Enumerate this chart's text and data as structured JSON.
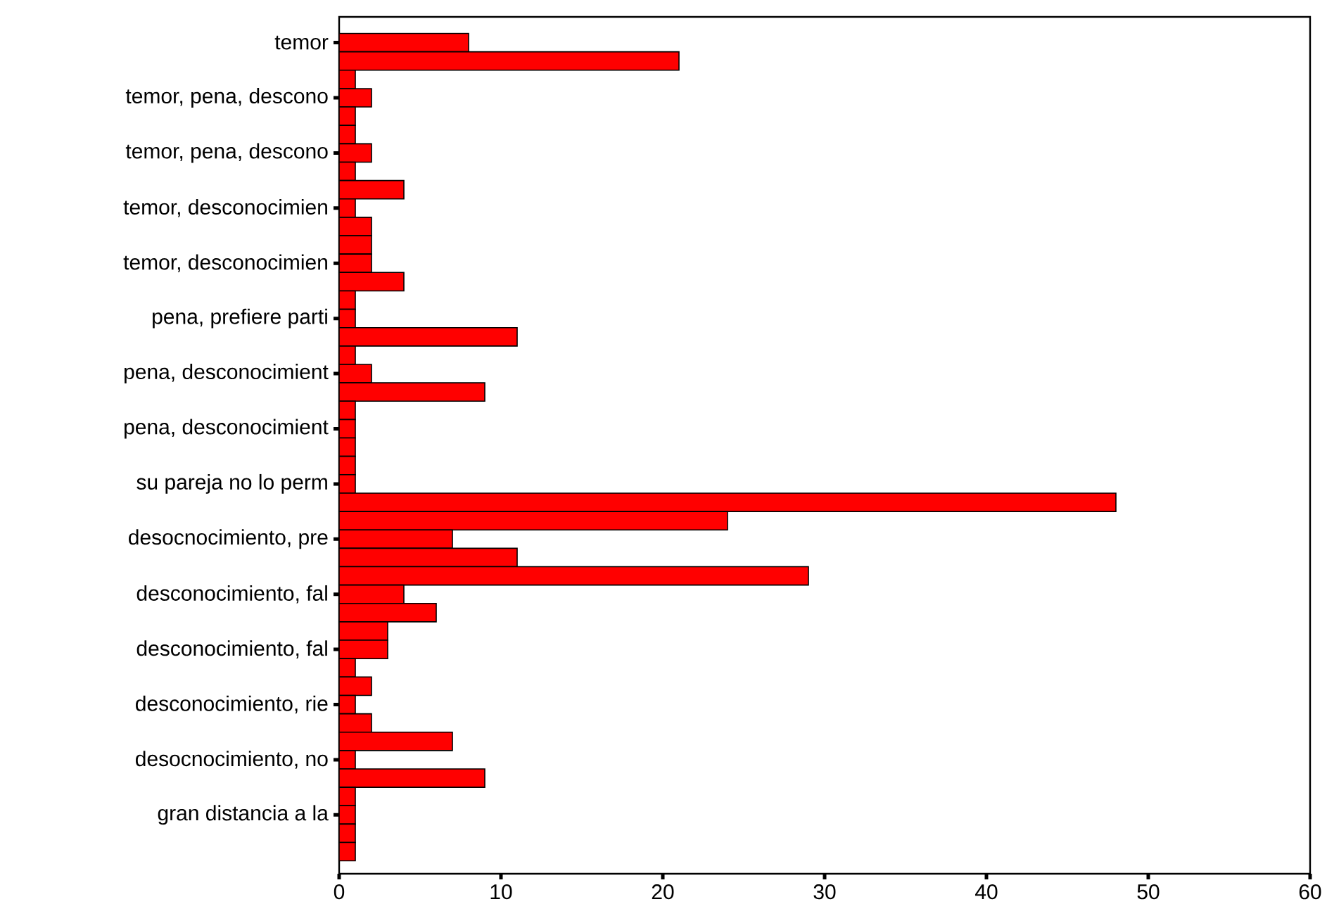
{
  "chart_data": {
    "type": "bar",
    "orientation": "horizontal",
    "categories": [
      "temor",
      null,
      null,
      "temor, pena, descono",
      null,
      null,
      "temor, pena, descono",
      null,
      null,
      "temor, desconocimien",
      null,
      null,
      "temor, desconocimien",
      null,
      null,
      "pena, prefiere parti",
      null,
      null,
      "pena, desconocimient",
      null,
      null,
      "pena, desconocimient",
      null,
      null,
      "su pareja no lo perm",
      null,
      null,
      "desocnocimiento, pre",
      null,
      null,
      "desconocimiento, fal",
      null,
      null,
      "desconocimiento, fal",
      null,
      null,
      "desconocimiento, rie",
      null,
      null,
      "desocnocimiento, no",
      null,
      null,
      "gran distancia a la",
      null,
      null
    ],
    "values": [
      8,
      21,
      1,
      2,
      1,
      1,
      2,
      1,
      4,
      1,
      2,
      2,
      2,
      4,
      1,
      1,
      11,
      1,
      2,
      9,
      1,
      1,
      1,
      1,
      1,
      48,
      24,
      7,
      11,
      29,
      4,
      6,
      3,
      3,
      1,
      2,
      1,
      2,
      7,
      1,
      9,
      1,
      1,
      1,
      1
    ],
    "color": "#ff0000",
    "xlim": [
      0,
      60
    ],
    "xticks": [
      0,
      10,
      20,
      30,
      40,
      50,
      60
    ]
  }
}
